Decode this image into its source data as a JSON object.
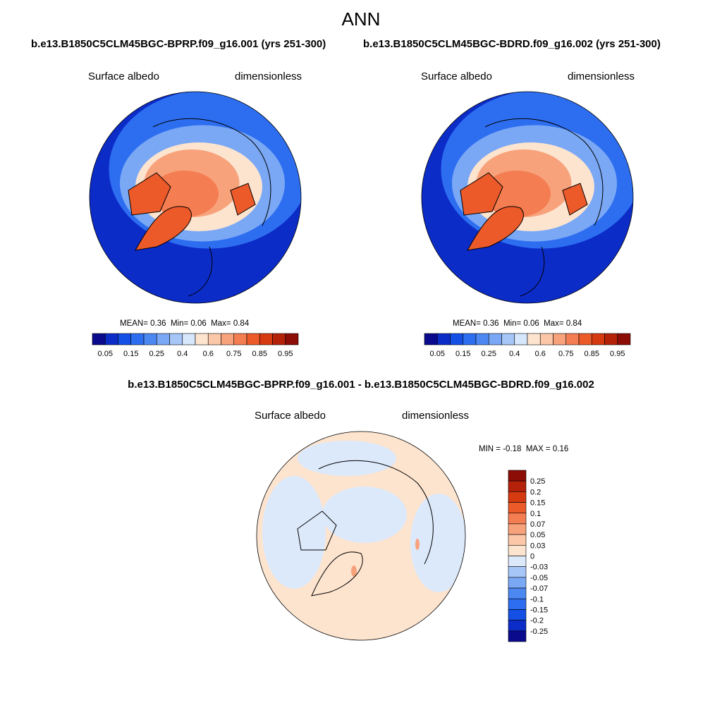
{
  "title": "ANN",
  "panels": [
    {
      "case_title": "b.e13.B1850C5CLM45BGC-BPRP.f09_g16.001 (yrs 251-300)",
      "variable": "Surface albedo",
      "units": "dimensionless",
      "stats": {
        "mean_label": "MEAN=",
        "mean": "0.36",
        "min_label": "Min=",
        "min": "0.06",
        "max_label": "Max=",
        "max": "0.84"
      }
    },
    {
      "case_title": "b.e13.B1850C5CLM45BGC-BDRD.f09_g16.002 (yrs 251-300)",
      "variable": "Surface albedo",
      "units": "dimensionless",
      "stats": {
        "mean_label": "MEAN=",
        "mean": "0.36",
        "min_label": "Min=",
        "min": "0.06",
        "max_label": "Max=",
        "max": "0.84"
      }
    }
  ],
  "diff": {
    "case_title": "b.e13.B1850C5CLM45BGC-BPRP.f09_g16.001 - b.e13.B1850C5CLM45BGC-BDRD.f09_g16.002",
    "variable": "Surface albedo",
    "units": "dimensionless",
    "stats": {
      "min_label": "MIN =",
      "min": "-0.18",
      "max_label": "MAX =",
      "max": "0.16"
    }
  },
  "colorbar_abs": {
    "colors": [
      "#0a0a8c",
      "#0c2cc8",
      "#1450e6",
      "#2d6ef0",
      "#4c88f2",
      "#7aa8f5",
      "#a6c6f8",
      "#d6e6fb",
      "#fde4cf",
      "#fbc7a8",
      "#f8a27c",
      "#f47d52",
      "#ec5a2a",
      "#d63a10",
      "#b4220a",
      "#8c0c06"
    ],
    "tick_labels": [
      "0.05",
      "0.15",
      "0.25",
      "0.4",
      "0.6",
      "0.75",
      "0.85",
      "0.95"
    ]
  },
  "colorbar_diff": {
    "colors": [
      "#8c0c06",
      "#b4220a",
      "#d63a10",
      "#ec5a2a",
      "#f47d52",
      "#f8a27c",
      "#fbc7a8",
      "#fde4cf",
      "#dce9fb",
      "#a6c6f8",
      "#7aa8f5",
      "#4c88f2",
      "#2d6ef0",
      "#1450e6",
      "#0c2cc8",
      "#0a0a8c"
    ],
    "tick_labels": [
      "0.25",
      "0.2",
      "0.15",
      "0.1",
      "0.07",
      "0.05",
      "0.03",
      "0",
      "-0.03",
      "-0.05",
      "-0.07",
      "-0.1",
      "-0.15",
      "-0.2",
      "-0.25"
    ]
  },
  "map_colors": {
    "ocean_deep": "#0c2cc8",
    "ocean_mid": "#2d6ef0",
    "ocean_light": "#7aa8f5",
    "ice_pale": "#fde4cf",
    "ice_mid": "#f8a27c",
    "ice_high": "#f47d52",
    "ice_top": "#ec5a2a",
    "diff_neg": "#dce9fb",
    "diff_pos": "#fde4cf",
    "diff_spot": "#f8a27c"
  }
}
